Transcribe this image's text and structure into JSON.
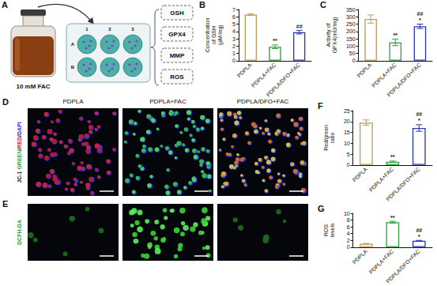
{
  "schematic": {
    "letter": "A",
    "reagent": "10 mM FAC",
    "plate_columns": [
      "1",
      "2",
      "3"
    ],
    "plate_rows": [
      "A",
      "B"
    ],
    "assays": [
      "GSH",
      "GPX4",
      "MMP",
      "ROS"
    ]
  },
  "microscopy": {
    "columns": [
      "PDPLA",
      "PDPLA+FAC",
      "PDPLA/DFO+FAC"
    ],
    "rows": [
      {
        "letter": "D",
        "label": [
          "JC-1 ",
          "GREEN",
          "/",
          "RED",
          "/",
          "DAPI"
        ],
        "label_colors": [
          "#111111",
          "#2e9e3e",
          "#111111",
          "#e02020",
          "#111111",
          "#2b35d0"
        ]
      },
      {
        "letter": "E",
        "label": [
          "DCFH-DA"
        ],
        "label_colors": [
          "#2e9e3e"
        ]
      }
    ]
  },
  "chart_data": [
    {
      "panel": "B",
      "type": "bar",
      "categories": [
        "PDPLA",
        "PDPLA+FAC",
        "PDPLA/DFO+FAC"
      ],
      "values": [
        6.3,
        1.9,
        3.9
      ],
      "errors": [
        0.1,
        0.25,
        0.25
      ],
      "colors": [
        "#c19a5b",
        "#2e9e3e",
        "#2b35b0"
      ],
      "y_label": "Concentration of GSH (μM/mg)",
      "ylim": [
        0,
        7
      ],
      "yticks": [
        0,
        1,
        2,
        3,
        4,
        5,
        6,
        7
      ],
      "annotations": [
        [],
        [
          "**"
        ],
        [
          "##"
        ]
      ],
      "grid": false
    },
    {
      "panel": "C",
      "type": "bar",
      "categories": [
        "PDPLA",
        "PDPLA+FAC",
        "PDPLA/DFO+FAC"
      ],
      "values": [
        285,
        125,
        235
      ],
      "errors": [
        28,
        22,
        15
      ],
      "colors": [
        "#c19a5b",
        "#2e9e3e",
        "#2b35b0"
      ],
      "y_label": "Activity of GPX4(mU/mg)",
      "ylim": [
        0,
        350
      ],
      "yticks": [
        0,
        50,
        100,
        150,
        200,
        250,
        300,
        350
      ],
      "annotations": [
        [],
        [
          "**"
        ],
        [
          "##",
          "*"
        ]
      ],
      "grid": false
    },
    {
      "panel": "F",
      "type": "bar",
      "categories": [
        "PDPLA",
        "PDPLA+FAC",
        "PDPLA/DFO+FAC"
      ],
      "values": [
        19.5,
        1.5,
        17
      ],
      "errors": [
        1.2,
        0.3,
        1.5
      ],
      "colors": [
        "#c19a5b",
        "#2e9e3e",
        "#2b35b0"
      ],
      "y_label": "Red/green ratio",
      "ylim": [
        0,
        25
      ],
      "yticks": [
        0,
        5,
        10,
        15,
        20,
        25
      ],
      "annotations": [
        [],
        [
          "**"
        ],
        [
          "##",
          "*"
        ]
      ],
      "grid": false
    },
    {
      "panel": "G",
      "type": "bar",
      "categories": [
        "PDPLA",
        "PDPLA+FAC",
        "PDPLA/DFO+FAC"
      ],
      "values": [
        1.0,
        7.4,
        1.9
      ],
      "errors": [
        0.1,
        0.25,
        0.1
      ],
      "colors": [
        "#c19a5b",
        "#2e9e3e",
        "#2b35b0"
      ],
      "y_label": "ROS levels",
      "ylim": [
        0,
        10
      ],
      "yticks": [
        0,
        2,
        4,
        6,
        8,
        10
      ],
      "annotations": [
        [],
        [
          "**"
        ],
        [
          "##",
          "*"
        ]
      ],
      "grid": false
    }
  ]
}
